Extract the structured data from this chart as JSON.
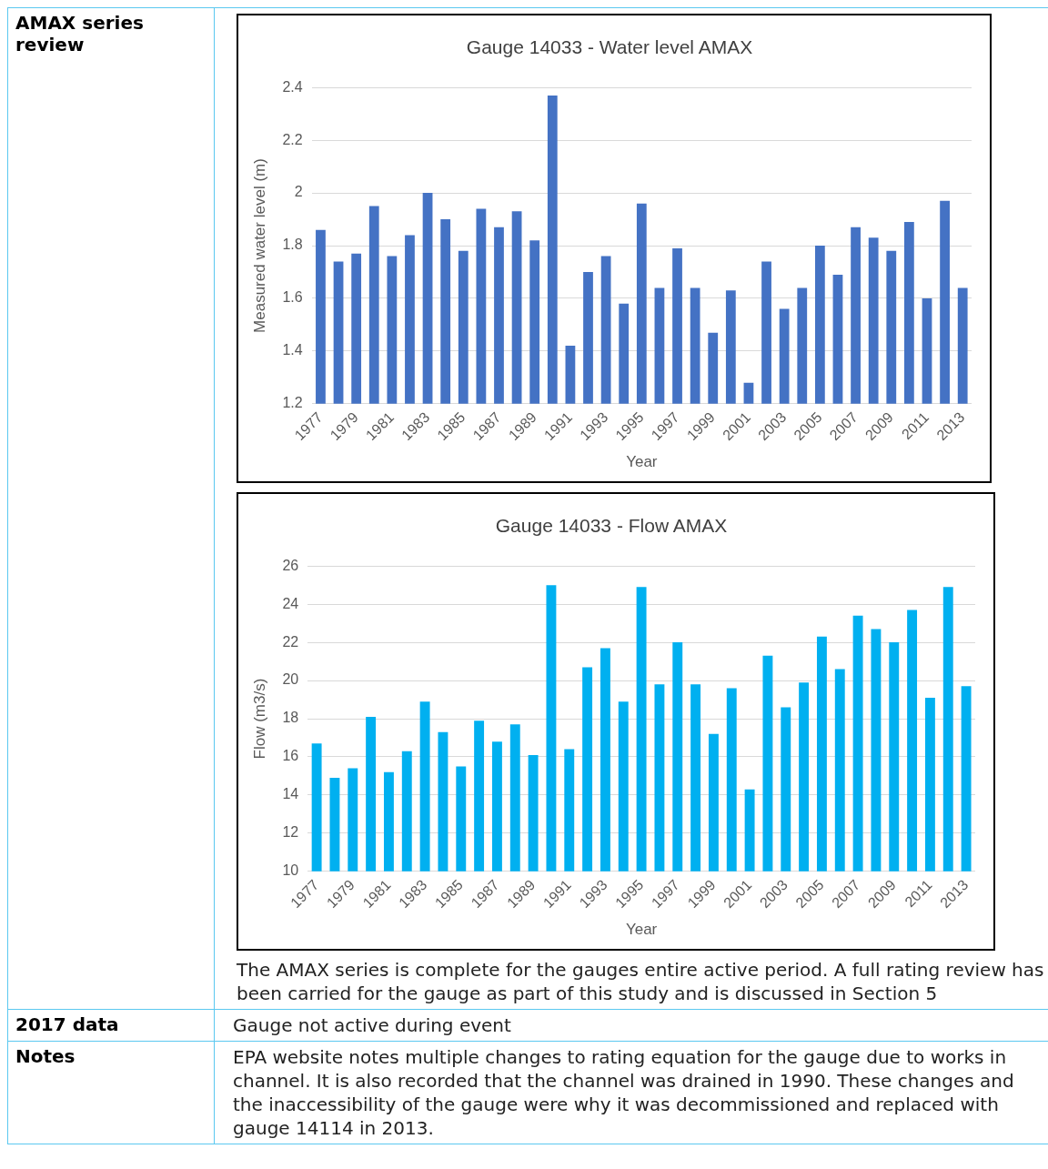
{
  "chart_data": [
    {
      "type": "bar",
      "title": "Gauge 14033 - Water level AMAX",
      "xlabel": "Year",
      "ylabel": "Measured water level (m)",
      "categories": [
        "1977",
        null,
        "1979",
        null,
        "1981",
        null,
        "1983",
        null,
        "1985",
        null,
        "1987",
        null,
        "1989",
        null,
        "1991",
        null,
        "1993",
        null,
        "1995",
        null,
        "1997",
        null,
        "1999",
        null,
        "2001",
        null,
        "2003",
        null,
        "2005",
        null,
        "2007",
        null,
        "2009",
        null,
        "2011",
        null,
        "2013"
      ],
      "values": [
        1.86,
        1.74,
        1.77,
        1.95,
        1.76,
        1.84,
        2.0,
        1.9,
        1.78,
        1.94,
        1.87,
        1.93,
        1.82,
        2.37,
        1.42,
        1.7,
        1.76,
        1.58,
        1.96,
        1.64,
        1.79,
        1.64,
        1.47,
        1.63,
        1.28,
        1.74,
        1.56,
        1.64,
        1.8,
        1.69,
        1.87,
        1.83,
        1.78,
        1.89,
        1.6,
        1.97,
        1.64
      ],
      "color": "#4472c4",
      "ylim": [
        1.2,
        2.4
      ],
      "yticks": [
        {
          "value": 1.2,
          "label": "1.2"
        },
        1.4,
        1.6,
        1.8,
        2,
        2.2,
        2.4
      ],
      "grid": "y",
      "annotations": [
        "AMAX series review"
      ]
    },
    {
      "type": "bar",
      "title": "Gauge 14033 - Flow AMAX",
      "xlabel": "Year",
      "ylabel": "Flow (m3/s)",
      "categories": [
        "1977",
        null,
        "1979",
        null,
        "1981",
        null,
        "1983",
        null,
        "1985",
        null,
        "1987",
        null,
        "1989",
        null,
        "1991",
        null,
        "1993",
        null,
        "1995",
        null,
        "1997",
        null,
        "1999",
        null,
        "2001",
        null,
        "2003",
        null,
        "2005",
        null,
        "2007",
        null,
        "2009",
        null,
        "2011",
        null,
        "2013"
      ],
      "values": [
        16.7,
        14.9,
        15.4,
        18.1,
        15.2,
        16.3,
        18.9,
        17.3,
        15.5,
        17.9,
        16.8,
        17.7,
        16.1,
        25.0,
        16.4,
        20.7,
        21.7,
        18.9,
        24.9,
        19.8,
        22.0,
        19.8,
        17.2,
        19.6,
        14.3,
        21.3,
        18.6,
        19.9,
        22.3,
        20.6,
        23.4,
        22.7,
        22.0,
        23.7,
        19.1,
        24.9,
        19.7
      ],
      "color": "#00b0f0",
      "ylim": [
        10,
        26
      ],
      "yticks": [
        10,
        12,
        14,
        16,
        18,
        20,
        22,
        24,
        26
      ],
      "grid": "y",
      "annotations": [
        "The AMAX series is complete for the gauges entire active period. A full rating review has been carried for the gauge as part of this study and is discussed in Section 5"
      ]
    },
    {
      "type": "other",
      "annotations": [
        "2017 data",
        "Gauge not active during event",
        "Notes",
        "EPA website notes multiple changes to rating equation for the gauge due to works in channel. It is also recorded that the channel was drained in 1990. These changes and the inaccessibility of the gauge were why it was decommissioned and replaced with gauge 14114 in 2013."
      ]
    }
  ]
}
